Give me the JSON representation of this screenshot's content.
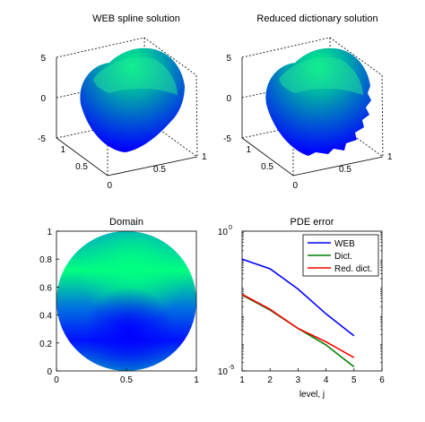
{
  "chart_data": [
    {
      "type": "surface",
      "title": "WEB spline solution",
      "zlim": [
        -5,
        5
      ],
      "z_ticks": [
        "5",
        "0",
        "-5"
      ],
      "x_ticks": [
        "0",
        "0.5",
        "1"
      ],
      "y_ticks": [
        "0",
        "0.5",
        "1"
      ],
      "colormap": [
        "#0000ff",
        "#00ff80"
      ]
    },
    {
      "type": "surface",
      "title": "Reduced dictionary solution",
      "zlim": [
        -5,
        5
      ],
      "z_ticks": [
        "5",
        "0",
        "-5"
      ],
      "x_ticks": [
        "0",
        "0.5",
        "1"
      ],
      "y_ticks": [
        "0",
        "0.5",
        "1"
      ],
      "colormap": [
        "#0000ff",
        "#00ff80"
      ]
    },
    {
      "type": "heatmap",
      "title": "Domain",
      "xlim": [
        0,
        1
      ],
      "ylim": [
        0,
        1
      ],
      "x_ticks": [
        "0",
        "0.5",
        "1"
      ],
      "y_ticks": [
        "0",
        "0.2",
        "0.4",
        "0.6",
        "0.8",
        "1"
      ],
      "colormap": [
        "#0000ff",
        "#00ff80"
      ]
    },
    {
      "type": "line",
      "title": "PDE error",
      "xlabel": "level, j",
      "xlim": [
        1,
        6
      ],
      "ylim": [
        1e-05,
        1
      ],
      "yscale": "log",
      "x_ticks": [
        "1",
        "2",
        "3",
        "4",
        "5",
        "6"
      ],
      "y_ticks": [
        {
          "base": "10",
          "exp": "0"
        },
        {
          "base": "10",
          "exp": "-5"
        }
      ],
      "legend_position": "top-right",
      "series": [
        {
          "name": "WEB",
          "color": "#0000ff",
          "x": [
            1,
            2,
            3,
            4,
            5
          ],
          "y": [
            0.1,
            0.045,
            0.0085,
            0.0011,
            0.00018
          ]
        },
        {
          "name": "Dict.",
          "color": "#008000",
          "x": [
            1,
            2,
            3,
            4,
            5
          ],
          "y": [
            0.0052,
            0.0015,
            0.00033,
            8.5e-05,
            1.4e-05
          ]
        },
        {
          "name": "Red. dict.",
          "color": "#ff0000",
          "x": [
            1,
            2,
            3,
            4,
            5
          ],
          "y": [
            0.0055,
            0.0016,
            0.00033,
            0.00011,
            3e-05
          ]
        }
      ]
    }
  ]
}
